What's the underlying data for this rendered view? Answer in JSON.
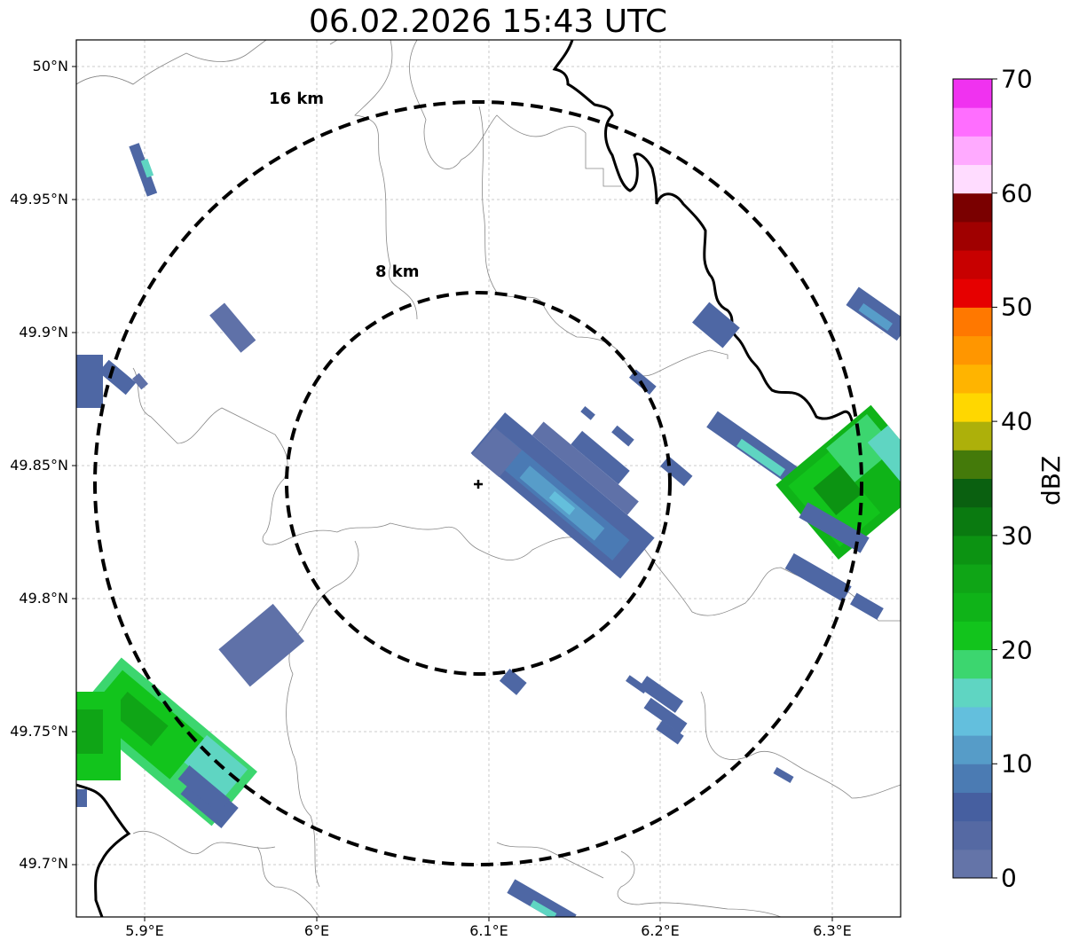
{
  "title": "06.02.2026 15:43 UTC",
  "lat_ticks": [
    "50°N",
    "49.95°N",
    "49.9°N",
    "49.85°N",
    "49.8°N",
    "49.75°N",
    "49.7°N"
  ],
  "lon_ticks": [
    "5.9°E",
    "6°E",
    "6.1°E",
    "6.2°E",
    "6.3°E"
  ],
  "range_rings": [
    {
      "label": "16 km",
      "radius_km": 16
    },
    {
      "label": "8 km",
      "radius_km": 8
    }
  ],
  "colorbar": {
    "unit": "dBZ",
    "tick_labels": [
      "0",
      "10",
      "20",
      "30",
      "40",
      "50",
      "60",
      "70"
    ],
    "min": 0,
    "max": 70,
    "step": 2.5,
    "colors": [
      "#6474a8",
      "#5569a3",
      "#465fa0",
      "#4b7bb3",
      "#569cc8",
      "#63bfdd",
      "#5fd5c2",
      "#3cd66f",
      "#12c41c",
      "#0fb318",
      "#0fa516",
      "#0c9312",
      "#0a7a10",
      "#0a6010",
      "#447a0a",
      "#adb00a",
      "#ffd700",
      "#ffb400",
      "#ff9600",
      "#ff7800",
      "#e60000",
      "#c80000",
      "#a00000",
      "#7a0000",
      "#ffdcff",
      "#ffaaff",
      "#ff6eff",
      "#f032f0"
    ]
  },
  "radar_site": {
    "lat": 49.843,
    "lon": 6.095
  }
}
